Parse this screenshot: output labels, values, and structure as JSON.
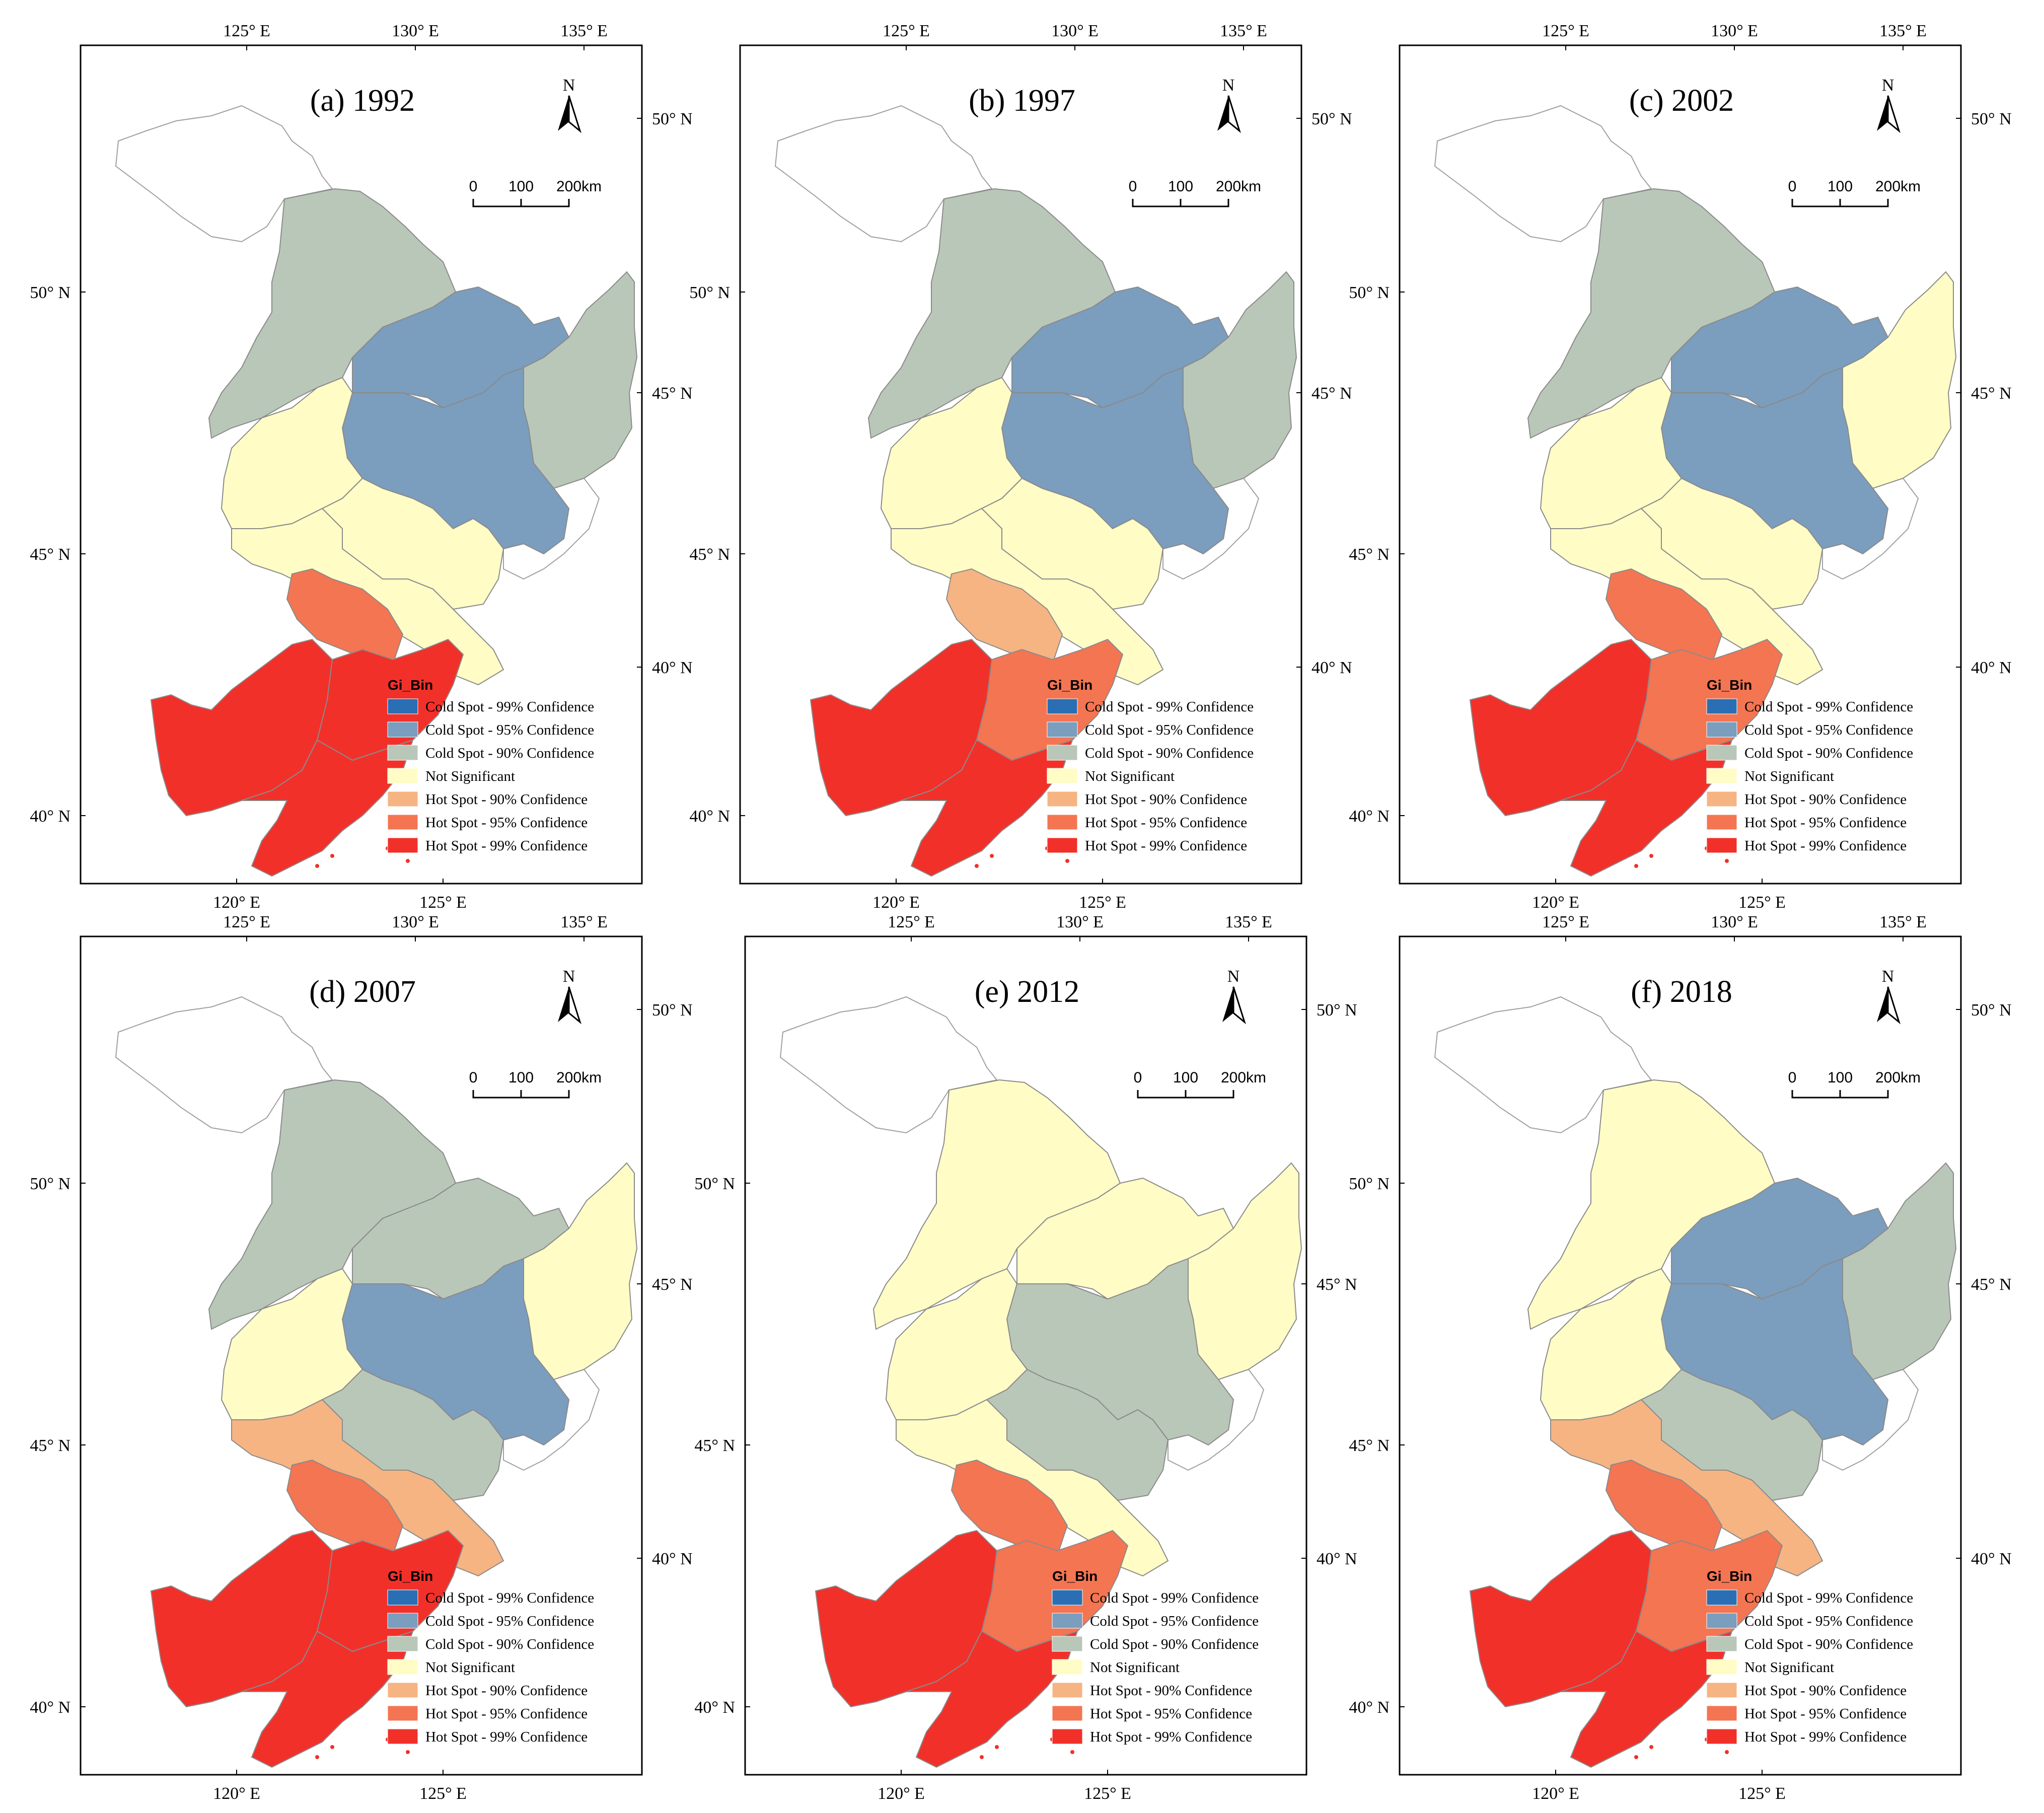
{
  "colors": {
    "cold99": "#2a6fb3",
    "cold95": "#7b9dbe",
    "cold90": "#b9c7b9",
    "ns": "#fffcc6",
    "hot90": "#f6b483",
    "hot95": "#f47552",
    "hot99": "#f2302a",
    "border": "#8a8a8a",
    "outline": "#a0a0a0"
  },
  "legend": {
    "title": "Gi_Bin",
    "items": [
      {
        "label": "Cold Spot - 99% Confidence",
        "key": "cold99"
      },
      {
        "label": "Cold Spot - 95% Confidence",
        "key": "cold95"
      },
      {
        "label": "Cold Spot - 90% Confidence",
        "key": "cold90"
      },
      {
        "label": "Not Significant",
        "key": "ns"
      },
      {
        "label": "Hot Spot - 90% Confidence",
        "key": "hot90"
      },
      {
        "label": "Hot Spot - 95% Confidence",
        "key": "hot95"
      },
      {
        "label": "Hot Spot - 99% Confidence",
        "key": "hot99"
      }
    ]
  },
  "north_label": "N",
  "scale_labels": [
    "0",
    "100",
    "200km"
  ],
  "top_ticks": [
    "125° E",
    "130° E",
    "135° E"
  ],
  "bottom_ticks": [
    "120° E",
    "125° E"
  ],
  "left_ticks": [
    "50° N",
    "45° N",
    "40° N"
  ],
  "right_ticks": [
    "50° N",
    "45° N",
    "40° N"
  ],
  "icons": [
    "north-arrow-icon",
    "scale-bar-icon"
  ],
  "panels": [
    {
      "label": "(a) 1992",
      "regions": {
        "north": "cold90",
        "ne": "cold95",
        "east": "cold90",
        "center": "cold95",
        "west": "ns",
        "mid": "ns",
        "southmid": "ns",
        "south_border": "hot95",
        "liaoning_w": "hot99",
        "liaoning_e": "hot99",
        "liaoning_s": "hot99"
      }
    },
    {
      "label": "(b) 1997",
      "regions": {
        "north": "cold90",
        "ne": "cold95",
        "east": "cold90",
        "center": "cold95",
        "west": "ns",
        "mid": "ns",
        "southmid": "ns",
        "south_border": "hot90",
        "liaoning_w": "hot99",
        "liaoning_e": "hot95",
        "liaoning_s": "hot99"
      }
    },
    {
      "label": "(c) 2002",
      "regions": {
        "north": "cold90",
        "ne": "cold95",
        "east": "ns",
        "center": "cold95",
        "west": "ns",
        "mid": "ns",
        "southmid": "ns",
        "south_border": "hot95",
        "liaoning_w": "hot99",
        "liaoning_e": "hot95",
        "liaoning_s": "hot99"
      }
    },
    {
      "label": "(d) 2007",
      "regions": {
        "north": "cold90",
        "ne": "cold90",
        "east": "ns",
        "center": "cold95",
        "west": "ns",
        "mid": "cold90",
        "southmid": "hot90",
        "south_border": "hot95",
        "liaoning_w": "hot99",
        "liaoning_e": "hot99",
        "liaoning_s": "hot99"
      }
    },
    {
      "label": "(e) 2012",
      "regions": {
        "north": "ns",
        "ne": "ns",
        "east": "ns",
        "center": "cold90",
        "west": "ns",
        "mid": "cold90",
        "southmid": "ns",
        "south_border": "hot95",
        "liaoning_w": "hot99",
        "liaoning_e": "hot95",
        "liaoning_s": "hot99"
      }
    },
    {
      "label": "(f) 2018",
      "regions": {
        "north": "ns",
        "ne": "cold95",
        "east": "cold90",
        "center": "cold95",
        "west": "ns",
        "mid": "cold90",
        "southmid": "hot90",
        "south_border": "hot95",
        "liaoning_w": "hot99",
        "liaoning_e": "hot95",
        "liaoning_s": "hot99"
      }
    }
  ]
}
